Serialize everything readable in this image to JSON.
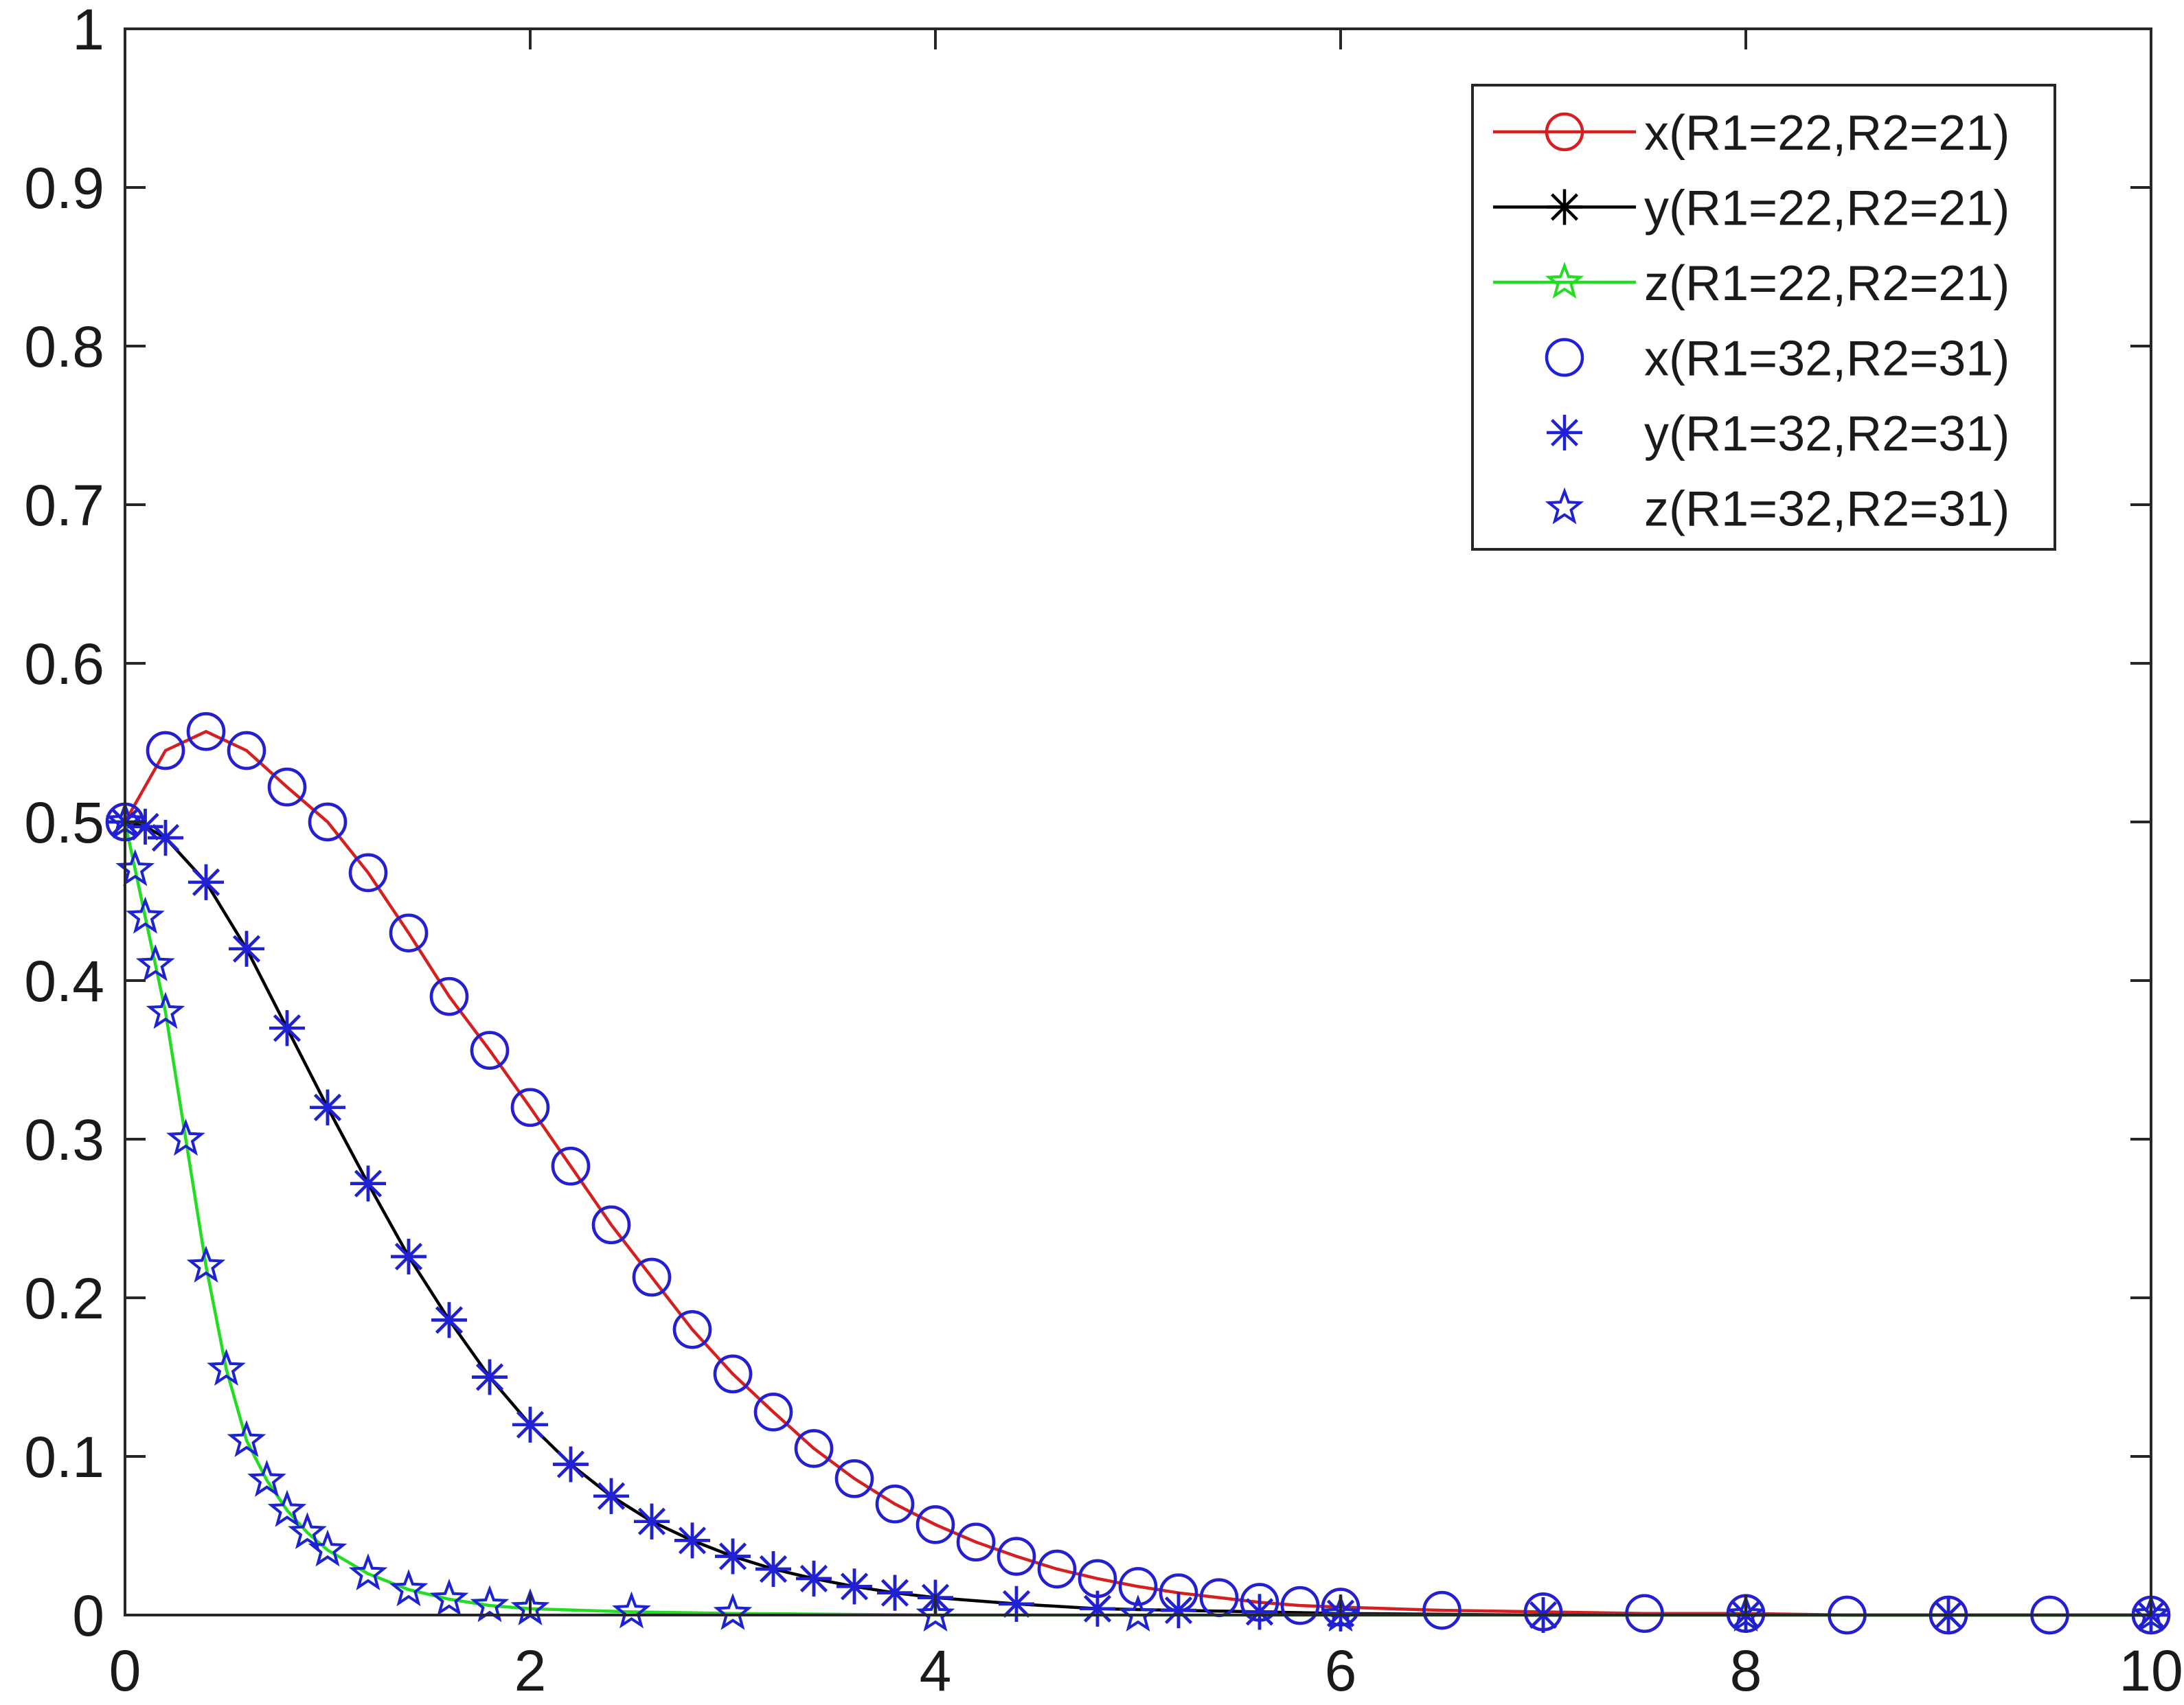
{
  "chart_data": {
    "type": "line",
    "title": "",
    "xlabel": "",
    "ylabel": "",
    "xlim": [
      0,
      10
    ],
    "ylim": [
      0,
      1
    ],
    "xticks": [
      0,
      2,
      4,
      6,
      8,
      10
    ],
    "yticks": [
      0,
      0.1,
      0.2,
      0.3,
      0.4,
      0.5,
      0.6,
      0.7,
      0.8,
      0.9,
      1
    ],
    "xtick_labels": [
      "0",
      "2",
      "4",
      "6",
      "8",
      "10"
    ],
    "ytick_labels": [
      "0",
      "0.1",
      "0.2",
      "0.3",
      "0.4",
      "0.5",
      "0.6",
      "0.7",
      "0.8",
      "0.9",
      "1"
    ],
    "grid": false,
    "legend_position": "top-right",
    "series": [
      {
        "name": "x(R1=22,R2=21)",
        "color": "#d42020",
        "marker": "circle",
        "line": true,
        "x": [
          0,
          0.2,
          0.4,
          0.6,
          0.8,
          1.0,
          1.2,
          1.4,
          1.6,
          1.8,
          2.0,
          2.2,
          2.4,
          2.6,
          2.8,
          3.0,
          3.2,
          3.4,
          3.6,
          3.8,
          4.0,
          4.2,
          4.4,
          4.6,
          4.8,
          5.0,
          5.2,
          5.4,
          5.6,
          5.8,
          6.0,
          6.5,
          7.0,
          7.5,
          8.0,
          8.5,
          9.0,
          9.5,
          10.0
        ],
        "y": [
          0.5,
          0.545,
          0.557,
          0.545,
          0.522,
          0.5,
          0.468,
          0.43,
          0.39,
          0.356,
          0.32,
          0.283,
          0.246,
          0.213,
          0.18,
          0.152,
          0.128,
          0.105,
          0.086,
          0.07,
          0.057,
          0.046,
          0.037,
          0.029,
          0.023,
          0.018,
          0.014,
          0.011,
          0.008,
          0.006,
          0.005,
          0.003,
          0.002,
          0.001,
          0.001,
          0.0,
          0.0,
          0.0,
          0.0
        ]
      },
      {
        "name": "y(R1=22,R2=21)",
        "color": "#000000",
        "marker": "asterisk",
        "line": true,
        "x": [
          0,
          0.1,
          0.2,
          0.4,
          0.6,
          0.8,
          1.0,
          1.2,
          1.4,
          1.6,
          1.8,
          2.0,
          2.2,
          2.4,
          2.6,
          2.8,
          3.0,
          3.2,
          3.4,
          3.6,
          3.8,
          4.0,
          4.4,
          4.8,
          5.2,
          5.6,
          6.0,
          7.0,
          8.0,
          9.0,
          10.0
        ],
        "y": [
          0.5,
          0.497,
          0.49,
          0.462,
          0.42,
          0.37,
          0.32,
          0.272,
          0.226,
          0.186,
          0.15,
          0.12,
          0.095,
          0.075,
          0.059,
          0.047,
          0.037,
          0.029,
          0.023,
          0.018,
          0.014,
          0.011,
          0.007,
          0.004,
          0.003,
          0.002,
          0.001,
          0.0,
          0.0,
          0.0,
          0.0
        ]
      },
      {
        "name": "z(R1=22,R2=21)",
        "color": "#22dd22",
        "marker": "star",
        "line": true,
        "x": [
          0,
          0.05,
          0.1,
          0.15,
          0.2,
          0.3,
          0.4,
          0.5,
          0.6,
          0.7,
          0.8,
          0.9,
          1.0,
          1.2,
          1.4,
          1.6,
          1.8,
          2.0,
          2.5,
          3.0,
          4.0,
          5.0,
          6.0,
          8.0,
          10.0
        ],
        "y": [
          0.5,
          0.47,
          0.44,
          0.41,
          0.38,
          0.3,
          0.22,
          0.155,
          0.11,
          0.085,
          0.066,
          0.052,
          0.041,
          0.026,
          0.016,
          0.01,
          0.006,
          0.004,
          0.002,
          0.001,
          0.0,
          0.0,
          0.0,
          0.0,
          0.0
        ]
      },
      {
        "name": "x(R1=32,R2=31)",
        "color": "#2020d4",
        "marker": "circle",
        "line": false,
        "x": [
          0,
          0.2,
          0.4,
          0.6,
          0.8,
          1.0,
          1.2,
          1.4,
          1.6,
          1.8,
          2.0,
          2.2,
          2.4,
          2.6,
          2.8,
          3.0,
          3.2,
          3.4,
          3.6,
          3.8,
          4.0,
          4.2,
          4.4,
          4.6,
          4.8,
          5.0,
          5.2,
          5.4,
          5.6,
          5.8,
          6.0,
          6.5,
          7.0,
          7.5,
          8.0,
          8.5,
          9.0,
          9.5,
          10.0
        ],
        "y": [
          0.5,
          0.545,
          0.557,
          0.545,
          0.522,
          0.5,
          0.468,
          0.43,
          0.39,
          0.356,
          0.32,
          0.283,
          0.246,
          0.213,
          0.18,
          0.152,
          0.128,
          0.105,
          0.086,
          0.07,
          0.057,
          0.046,
          0.037,
          0.029,
          0.023,
          0.018,
          0.014,
          0.011,
          0.008,
          0.006,
          0.005,
          0.003,
          0.002,
          0.001,
          0.001,
          0.0,
          0.0,
          0.0,
          0.0
        ]
      },
      {
        "name": "y(R1=32,R2=31)",
        "color": "#2020d4",
        "marker": "asterisk",
        "line": false,
        "x": [
          0,
          0.1,
          0.2,
          0.4,
          0.6,
          0.8,
          1.0,
          1.2,
          1.4,
          1.6,
          1.8,
          2.0,
          2.2,
          2.4,
          2.6,
          2.8,
          3.0,
          3.2,
          3.4,
          3.6,
          3.8,
          4.0,
          4.4,
          4.8,
          5.2,
          5.6,
          6.0,
          7.0,
          8.0,
          9.0,
          10.0
        ],
        "y": [
          0.5,
          0.497,
          0.49,
          0.462,
          0.42,
          0.37,
          0.32,
          0.272,
          0.226,
          0.186,
          0.15,
          0.12,
          0.095,
          0.075,
          0.059,
          0.047,
          0.037,
          0.029,
          0.023,
          0.018,
          0.014,
          0.011,
          0.007,
          0.004,
          0.003,
          0.002,
          0.001,
          0.0,
          0.0,
          0.0,
          0.0
        ]
      },
      {
        "name": "z(R1=32,R2=31)",
        "color": "#2020d4",
        "marker": "star",
        "line": false,
        "x": [
          0,
          0.05,
          0.1,
          0.15,
          0.2,
          0.3,
          0.4,
          0.5,
          0.6,
          0.7,
          0.8,
          0.9,
          1.0,
          1.2,
          1.4,
          1.6,
          1.8,
          2.0,
          2.5,
          3.0,
          4.0,
          5.0,
          6.0,
          8.0,
          10.0
        ],
        "y": [
          0.5,
          0.47,
          0.44,
          0.41,
          0.38,
          0.3,
          0.22,
          0.155,
          0.11,
          0.085,
          0.066,
          0.052,
          0.041,
          0.026,
          0.016,
          0.01,
          0.006,
          0.004,
          0.002,
          0.001,
          0.0,
          0.0,
          0.0,
          0.0,
          0.0
        ]
      }
    ]
  }
}
